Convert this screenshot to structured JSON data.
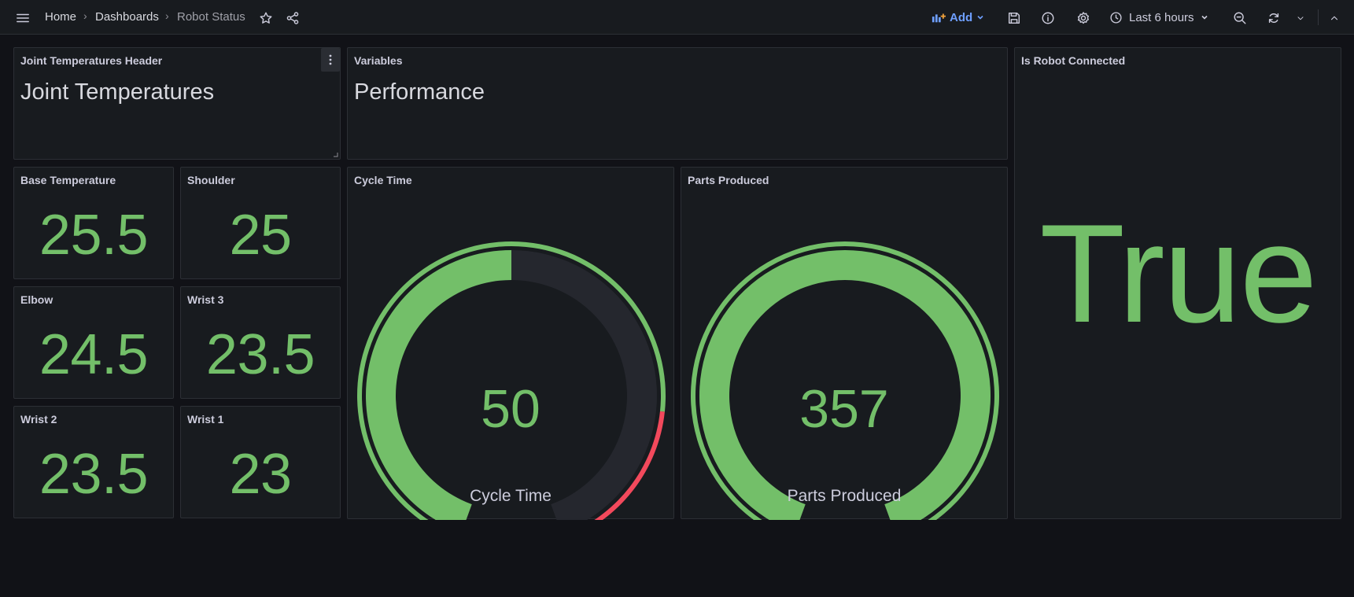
{
  "nav": {
    "breadcrumb": [
      "Home",
      "Dashboards",
      "Robot Status"
    ],
    "add_label": "Add",
    "time_range": "Last 6 hours"
  },
  "panels": {
    "joint_header": {
      "title": "Joint Temperatures Header",
      "text": "Joint Temperatures"
    },
    "variables": {
      "title": "Variables",
      "text": "Performance"
    },
    "robot_connected": {
      "title": "Is Robot Connected",
      "value": "True"
    },
    "base": {
      "title": "Base Temperature",
      "value": "25.5"
    },
    "shoulder": {
      "title": "Shoulder",
      "value": "25"
    },
    "elbow": {
      "title": "Elbow",
      "value": "24.5"
    },
    "wrist3": {
      "title": "Wrist 3",
      "value": "23.5"
    },
    "wrist2": {
      "title": "Wrist 2",
      "value": "23.5"
    },
    "wrist1": {
      "title": "Wrist 1",
      "value": "23"
    },
    "cycle_time": {
      "title": "Cycle Time",
      "value": "50",
      "label": "Cycle Time",
      "min": 0,
      "max": 100,
      "red_threshold": 80
    },
    "parts_produced": {
      "title": "Parts Produced",
      "value": "357",
      "label": "Parts Produced",
      "min": 0,
      "max": 357
    }
  },
  "colors": {
    "green": "#73bf69",
    "red": "#f2495c",
    "track": "#25272e",
    "panel_bg": "#181b1f",
    "accent_blue": "#6e9fff"
  }
}
